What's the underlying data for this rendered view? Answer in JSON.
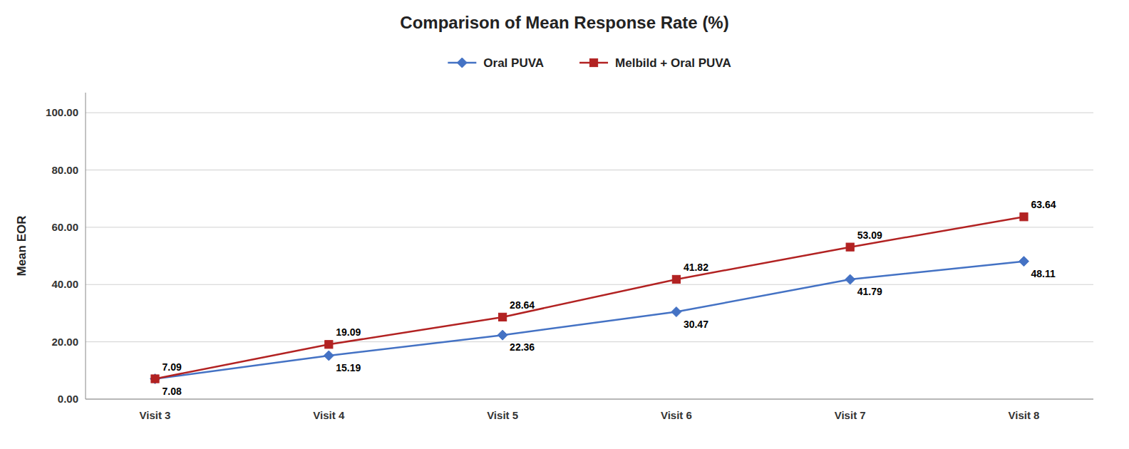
{
  "chart_data": {
    "type": "line",
    "title": "Comparison of Mean Response Rate (%)",
    "ylabel": "Mean EOR",
    "categories": [
      "Visit 3",
      "Visit 4",
      "Visit 5",
      "Visit 6",
      "Visit 7",
      "Visit 8"
    ],
    "series": [
      {
        "name": "Oral PUVA",
        "color": "#4472C4",
        "marker": "diamond",
        "values": [
          7.08,
          15.19,
          22.36,
          30.47,
          41.79,
          48.11
        ]
      },
      {
        "name": "Melbild + Oral PUVA",
        "color": "#B22222",
        "marker": "square",
        "values": [
          7.09,
          19.09,
          28.64,
          41.82,
          53.09,
          63.64
        ]
      }
    ],
    "ylim": [
      0,
      107
    ],
    "yticks": [
      {
        "value": 0,
        "label": "0.00"
      },
      {
        "value": 20,
        "label": "20.00"
      },
      {
        "value": 40,
        "label": "40.00"
      },
      {
        "value": 60,
        "label": "60.00"
      },
      {
        "value": 80,
        "label": "80.00"
      },
      {
        "value": 100,
        "label": "100.00"
      }
    ],
    "grid": true,
    "legend": "top",
    "data_labels": true
  }
}
